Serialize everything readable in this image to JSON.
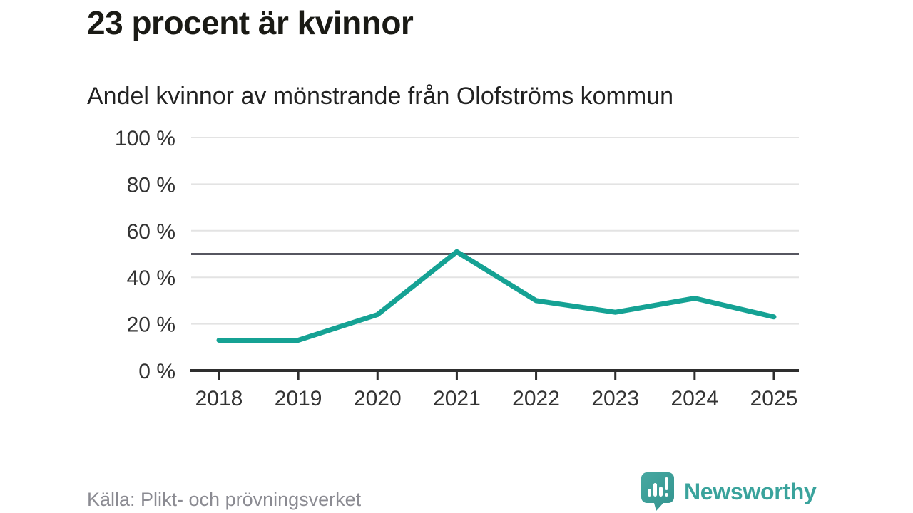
{
  "header": {
    "title": "23 procent är kvinnor",
    "subtitle": "Andel kvinnor av mönstrande från Olofströms kommun"
  },
  "chart_data": {
    "type": "line",
    "title": "23 procent är kvinnor",
    "subtitle": "Andel kvinnor av mönstrande från Olofströms kommun",
    "categories": [
      "2018",
      "2019",
      "2020",
      "2021",
      "2022",
      "2023",
      "2024",
      "2025"
    ],
    "series": [
      {
        "name": "Andel kvinnor av mönstrande",
        "values": [
          13,
          13,
          24,
          51,
          30,
          25,
          31,
          23
        ]
      }
    ],
    "unit": "%",
    "xlabel": "",
    "ylabel": "",
    "ylim": [
      0,
      100
    ],
    "yticks": [
      0,
      20,
      40,
      60,
      80,
      100
    ],
    "y_tick_labels": [
      "0 %",
      "20 %",
      "40 %",
      "60 %",
      "80 %",
      "100 %"
    ],
    "reference_line": 50,
    "grid": true,
    "legend": false,
    "colors": {
      "line": "#15a294",
      "grid": "#e3e3e3",
      "axis": "#2e2e2e",
      "reference": "#565660",
      "tick_label": "#333333"
    }
  },
  "footer": {
    "source": "Källa: Plikt- och prövningsverket"
  },
  "logo": {
    "brand": "Newsworthy",
    "color": "#3aa39c",
    "icon": "bar-chart-speech-bubble"
  }
}
